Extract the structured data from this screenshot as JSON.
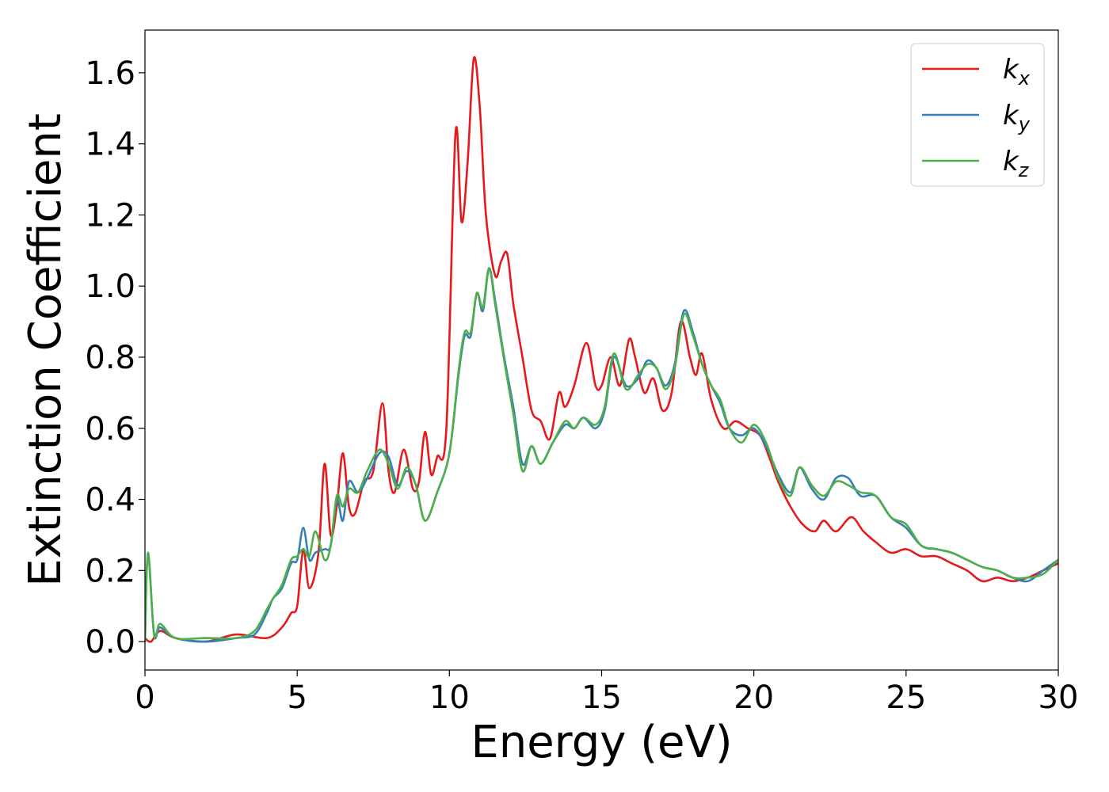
{
  "chart_data": {
    "type": "line",
    "xlabel": "Energy (eV)",
    "ylabel": "Extinction Coefficient",
    "xlim": [
      0,
      30
    ],
    "ylim": [
      -0.08,
      1.72
    ],
    "xticks": [
      "0",
      "5",
      "10",
      "15",
      "20",
      "25",
      "30"
    ],
    "yticks": [
      "0.0",
      "0.2",
      "0.4",
      "0.6",
      "0.8",
      "1.0",
      "1.2",
      "1.4",
      "1.6"
    ],
    "grid": false,
    "legend_position": "top-right",
    "series": [
      {
        "name": "kx",
        "base": "k",
        "sub": "x",
        "color": "#e41a1c",
        "points": [
          [
            0,
            0.01
          ],
          [
            0.2,
            0.0
          ],
          [
            0.5,
            0.03
          ],
          [
            1,
            0.01
          ],
          [
            2,
            0.0
          ],
          [
            3,
            0.02
          ],
          [
            4,
            0.01
          ],
          [
            4.5,
            0.04
          ],
          [
            4.8,
            0.08
          ],
          [
            5.0,
            0.1
          ],
          [
            5.2,
            0.26
          ],
          [
            5.4,
            0.15
          ],
          [
            5.7,
            0.25
          ],
          [
            5.9,
            0.5
          ],
          [
            6.1,
            0.3
          ],
          [
            6.3,
            0.38
          ],
          [
            6.5,
            0.53
          ],
          [
            6.7,
            0.38
          ],
          [
            6.9,
            0.36
          ],
          [
            7.2,
            0.45
          ],
          [
            7.5,
            0.48
          ],
          [
            7.8,
            0.67
          ],
          [
            8.0,
            0.48
          ],
          [
            8.2,
            0.42
          ],
          [
            8.5,
            0.54
          ],
          [
            8.8,
            0.43
          ],
          [
            9.0,
            0.45
          ],
          [
            9.2,
            0.59
          ],
          [
            9.4,
            0.47
          ],
          [
            9.6,
            0.52
          ],
          [
            9.9,
            0.6
          ],
          [
            10.2,
            1.43
          ],
          [
            10.4,
            1.18
          ],
          [
            10.6,
            1.35
          ],
          [
            10.8,
            1.64
          ],
          [
            11.0,
            1.5
          ],
          [
            11.2,
            1.2
          ],
          [
            11.5,
            1.03
          ],
          [
            11.7,
            1.07
          ],
          [
            11.9,
            1.09
          ],
          [
            12.1,
            0.95
          ],
          [
            12.4,
            0.8
          ],
          [
            12.7,
            0.65
          ],
          [
            13.0,
            0.62
          ],
          [
            13.3,
            0.57
          ],
          [
            13.6,
            0.7
          ],
          [
            13.8,
            0.66
          ],
          [
            14.1,
            0.72
          ],
          [
            14.5,
            0.84
          ],
          [
            14.8,
            0.72
          ],
          [
            15.0,
            0.72
          ],
          [
            15.3,
            0.8
          ],
          [
            15.6,
            0.72
          ],
          [
            15.9,
            0.85
          ],
          [
            16.1,
            0.8
          ],
          [
            16.4,
            0.7
          ],
          [
            16.7,
            0.74
          ],
          [
            17.0,
            0.65
          ],
          [
            17.3,
            0.7
          ],
          [
            17.6,
            0.9
          ],
          [
            17.9,
            0.8
          ],
          [
            18.1,
            0.75
          ],
          [
            18.3,
            0.81
          ],
          [
            18.6,
            0.68
          ],
          [
            19.0,
            0.6
          ],
          [
            19.4,
            0.62
          ],
          [
            19.8,
            0.6
          ],
          [
            20.2,
            0.58
          ],
          [
            20.5,
            0.52
          ],
          [
            20.8,
            0.45
          ],
          [
            21.2,
            0.38
          ],
          [
            21.6,
            0.33
          ],
          [
            22.0,
            0.31
          ],
          [
            22.3,
            0.34
          ],
          [
            22.7,
            0.31
          ],
          [
            23.2,
            0.35
          ],
          [
            23.6,
            0.31
          ],
          [
            24.0,
            0.28
          ],
          [
            24.5,
            0.25
          ],
          [
            25.0,
            0.26
          ],
          [
            25.5,
            0.24
          ],
          [
            26.0,
            0.24
          ],
          [
            26.5,
            0.22
          ],
          [
            27.0,
            0.2
          ],
          [
            27.5,
            0.17
          ],
          [
            28.0,
            0.18
          ],
          [
            28.5,
            0.17
          ],
          [
            29.0,
            0.18
          ],
          [
            29.5,
            0.2
          ],
          [
            30.0,
            0.22
          ]
        ]
      },
      {
        "name": "ky",
        "base": "k",
        "sub": "y",
        "color": "#377eb8",
        "points": [
          [
            0,
            0.0
          ],
          [
            0.1,
            0.25
          ],
          [
            0.3,
            0.02
          ],
          [
            0.5,
            0.04
          ],
          [
            1,
            0.01
          ],
          [
            2,
            0.0
          ],
          [
            3,
            0.01
          ],
          [
            3.6,
            0.02
          ],
          [
            4.0,
            0.08
          ],
          [
            4.2,
            0.12
          ],
          [
            4.5,
            0.15
          ],
          [
            4.8,
            0.22
          ],
          [
            5.0,
            0.23
          ],
          [
            5.2,
            0.32
          ],
          [
            5.4,
            0.23
          ],
          [
            5.6,
            0.25
          ],
          [
            5.9,
            0.26
          ],
          [
            6.1,
            0.27
          ],
          [
            6.3,
            0.4
          ],
          [
            6.5,
            0.34
          ],
          [
            6.7,
            0.45
          ],
          [
            7.0,
            0.42
          ],
          [
            7.3,
            0.46
          ],
          [
            7.7,
            0.53
          ],
          [
            8.0,
            0.52
          ],
          [
            8.3,
            0.44
          ],
          [
            8.6,
            0.48
          ],
          [
            8.9,
            0.44
          ],
          [
            9.2,
            0.34
          ],
          [
            9.6,
            0.42
          ],
          [
            10.0,
            0.53
          ],
          [
            10.3,
            0.75
          ],
          [
            10.5,
            0.86
          ],
          [
            10.7,
            0.86
          ],
          [
            10.9,
            0.98
          ],
          [
            11.1,
            0.93
          ],
          [
            11.3,
            1.05
          ],
          [
            11.5,
            0.96
          ],
          [
            11.8,
            0.8
          ],
          [
            12.1,
            0.66
          ],
          [
            12.4,
            0.5
          ],
          [
            12.7,
            0.55
          ],
          [
            13.0,
            0.5
          ],
          [
            13.4,
            0.56
          ],
          [
            13.8,
            0.61
          ],
          [
            14.1,
            0.6
          ],
          [
            14.4,
            0.63
          ],
          [
            14.8,
            0.6
          ],
          [
            15.1,
            0.65
          ],
          [
            15.4,
            0.8
          ],
          [
            15.8,
            0.72
          ],
          [
            16.2,
            0.74
          ],
          [
            16.5,
            0.79
          ],
          [
            16.8,
            0.77
          ],
          [
            17.1,
            0.72
          ],
          [
            17.4,
            0.78
          ],
          [
            17.7,
            0.93
          ],
          [
            18.0,
            0.87
          ],
          [
            18.3,
            0.78
          ],
          [
            18.6,
            0.72
          ],
          [
            18.9,
            0.67
          ],
          [
            19.2,
            0.6
          ],
          [
            19.6,
            0.58
          ],
          [
            20.0,
            0.6
          ],
          [
            20.4,
            0.55
          ],
          [
            20.8,
            0.47
          ],
          [
            21.2,
            0.42
          ],
          [
            21.5,
            0.49
          ],
          [
            21.9,
            0.43
          ],
          [
            22.3,
            0.4
          ],
          [
            22.7,
            0.46
          ],
          [
            23.1,
            0.46
          ],
          [
            23.5,
            0.41
          ],
          [
            24.0,
            0.41
          ],
          [
            24.5,
            0.35
          ],
          [
            25.0,
            0.32
          ],
          [
            25.5,
            0.27
          ],
          [
            26.0,
            0.26
          ],
          [
            26.5,
            0.25
          ],
          [
            27.0,
            0.23
          ],
          [
            27.5,
            0.21
          ],
          [
            28.0,
            0.2
          ],
          [
            28.5,
            0.18
          ],
          [
            29.0,
            0.17
          ],
          [
            29.5,
            0.2
          ],
          [
            30.0,
            0.23
          ]
        ]
      },
      {
        "name": "kz",
        "base": "k",
        "sub": "z",
        "color": "#4daf4a",
        "points": [
          [
            0,
            0.0
          ],
          [
            0.1,
            0.25
          ],
          [
            0.3,
            0.02
          ],
          [
            0.5,
            0.05
          ],
          [
            1,
            0.01
          ],
          [
            2,
            0.01
          ],
          [
            3,
            0.01
          ],
          [
            3.6,
            0.03
          ],
          [
            4.0,
            0.09
          ],
          [
            4.2,
            0.12
          ],
          [
            4.5,
            0.16
          ],
          [
            4.8,
            0.23
          ],
          [
            5.0,
            0.24
          ],
          [
            5.2,
            0.26
          ],
          [
            5.4,
            0.24
          ],
          [
            5.6,
            0.31
          ],
          [
            5.9,
            0.23
          ],
          [
            6.1,
            0.27
          ],
          [
            6.3,
            0.41
          ],
          [
            6.5,
            0.38
          ],
          [
            6.7,
            0.43
          ],
          [
            7.0,
            0.42
          ],
          [
            7.3,
            0.48
          ],
          [
            7.7,
            0.54
          ],
          [
            8.0,
            0.5
          ],
          [
            8.3,
            0.43
          ],
          [
            8.6,
            0.49
          ],
          [
            8.9,
            0.44
          ],
          [
            9.2,
            0.34
          ],
          [
            9.6,
            0.42
          ],
          [
            10.0,
            0.53
          ],
          [
            10.3,
            0.76
          ],
          [
            10.5,
            0.87
          ],
          [
            10.7,
            0.87
          ],
          [
            10.9,
            0.98
          ],
          [
            11.1,
            0.94
          ],
          [
            11.3,
            1.05
          ],
          [
            11.5,
            0.95
          ],
          [
            11.8,
            0.79
          ],
          [
            12.1,
            0.64
          ],
          [
            12.4,
            0.48
          ],
          [
            12.7,
            0.55
          ],
          [
            13.0,
            0.5
          ],
          [
            13.4,
            0.56
          ],
          [
            13.8,
            0.62
          ],
          [
            14.1,
            0.6
          ],
          [
            14.4,
            0.63
          ],
          [
            14.8,
            0.61
          ],
          [
            15.1,
            0.66
          ],
          [
            15.4,
            0.81
          ],
          [
            15.8,
            0.71
          ],
          [
            16.2,
            0.75
          ],
          [
            16.5,
            0.78
          ],
          [
            16.8,
            0.77
          ],
          [
            17.1,
            0.71
          ],
          [
            17.4,
            0.77
          ],
          [
            17.7,
            0.92
          ],
          [
            18.0,
            0.86
          ],
          [
            18.3,
            0.78
          ],
          [
            18.6,
            0.72
          ],
          [
            18.9,
            0.68
          ],
          [
            19.2,
            0.6
          ],
          [
            19.6,
            0.56
          ],
          [
            20.0,
            0.61
          ],
          [
            20.4,
            0.56
          ],
          [
            20.8,
            0.46
          ],
          [
            21.2,
            0.41
          ],
          [
            21.5,
            0.49
          ],
          [
            21.9,
            0.44
          ],
          [
            22.3,
            0.41
          ],
          [
            22.7,
            0.45
          ],
          [
            23.1,
            0.44
          ],
          [
            23.5,
            0.42
          ],
          [
            24.0,
            0.41
          ],
          [
            24.5,
            0.35
          ],
          [
            25.0,
            0.33
          ],
          [
            25.5,
            0.27
          ],
          [
            26.0,
            0.26
          ],
          [
            26.5,
            0.25
          ],
          [
            27.0,
            0.23
          ],
          [
            27.5,
            0.21
          ],
          [
            28.0,
            0.2
          ],
          [
            28.5,
            0.18
          ],
          [
            29.0,
            0.18
          ],
          [
            29.5,
            0.19
          ],
          [
            30.0,
            0.23
          ]
        ]
      }
    ]
  }
}
